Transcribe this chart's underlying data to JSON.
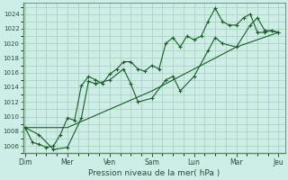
{
  "background_color": "#cceee6",
  "grid_color": "#aaccbb",
  "line_color": "#1a5c2a",
  "xlabel": "Pression niveau de la mer( hPa )",
  "ylim": [
    1005.0,
    1025.5
  ],
  "yticks": [
    1006,
    1008,
    1010,
    1012,
    1014,
    1016,
    1018,
    1020,
    1022,
    1024
  ],
  "xtick_labels": [
    "Dim",
    "Mer",
    "Ven",
    "Sam",
    "Lun",
    "Mar",
    "Jeu"
  ],
  "xtick_positions": [
    0,
    1,
    2,
    3,
    4,
    5,
    6
  ],
  "line1_x": [
    0,
    0.17,
    0.33,
    0.5,
    0.67,
    0.83,
    1.0,
    1.17,
    1.33,
    1.5,
    1.67,
    1.83,
    2.0,
    2.17,
    2.33,
    2.5,
    2.67,
    2.83,
    3.0,
    3.17,
    3.33,
    3.5,
    3.67,
    3.83,
    4.0,
    4.17,
    4.33,
    4.5,
    4.67,
    4.83,
    5.0,
    5.17,
    5.33,
    5.5,
    5.67,
    5.83,
    6.0
  ],
  "line1_y": [
    1008.5,
    1006.5,
    1006.2,
    1005.8,
    1006.0,
    1007.5,
    1009.8,
    1009.5,
    1014.2,
    1015.5,
    1015.0,
    1014.5,
    1015.8,
    1016.5,
    1017.5,
    1017.5,
    1016.5,
    1016.2,
    1017.0,
    1016.5,
    1020.0,
    1020.8,
    1019.5,
    1021.0,
    1020.5,
    1021.0,
    1023.0,
    1024.8,
    1023.0,
    1022.5,
    1022.5,
    1023.5,
    1024.0,
    1021.5,
    1021.5,
    1021.8,
    1021.5
  ],
  "line2_x": [
    0,
    0.33,
    0.67,
    1.0,
    1.33,
    1.5,
    1.67,
    2.0,
    2.33,
    2.5,
    2.67,
    3.0,
    3.33,
    3.5,
    3.67,
    4.0,
    4.33,
    4.5,
    4.67,
    5.0,
    5.33,
    5.5,
    5.67,
    6.0
  ],
  "line2_y": [
    1008.5,
    1007.5,
    1005.5,
    1005.8,
    1009.8,
    1014.8,
    1014.5,
    1015.0,
    1016.5,
    1014.5,
    1012.0,
    1012.5,
    1015.0,
    1015.5,
    1013.5,
    1015.5,
    1019.0,
    1020.8,
    1020.0,
    1019.5,
    1022.5,
    1023.5,
    1021.8,
    1021.5
  ],
  "line3_x": [
    0,
    1,
    2,
    3,
    4,
    5,
    6
  ],
  "line3_y": [
    1008.5,
    1008.5,
    1011.0,
    1013.5,
    1016.5,
    1019.5,
    1021.5
  ]
}
